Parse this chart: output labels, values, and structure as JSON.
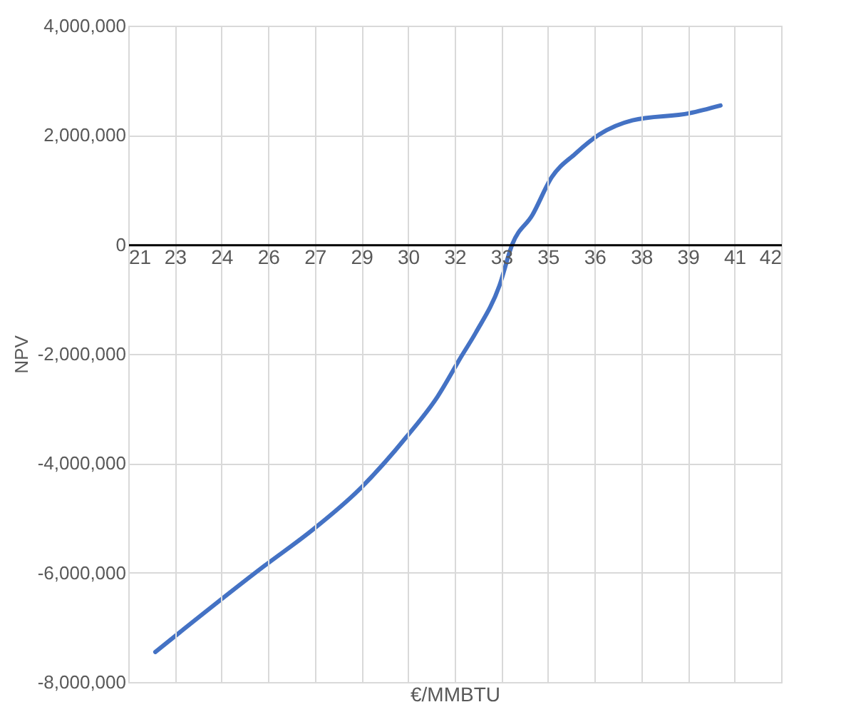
{
  "chart_data": {
    "type": "line",
    "xlabel": "€/MMBTU",
    "ylabel": "NPV",
    "series": [
      {
        "color": "#4472c4",
        "x": [
          21.87,
          25.37,
          26.9,
          28.43,
          29.96,
          30.95,
          31.72,
          32.18,
          32.94,
          33.35,
          34.0,
          34.62,
          35.38,
          36.15,
          37.22,
          39.06,
          40.05
        ],
        "values": [
          -7450000,
          -5880000,
          -5230000,
          -4480000,
          -3510000,
          -2780000,
          -2040000,
          -1610000,
          -750000,
          0,
          540000,
          1230000,
          1660000,
          2010000,
          2270000,
          2400000,
          2540000
        ]
      }
    ],
    "xlim": [
      21,
      42
    ],
    "xticks": [
      21,
      {
        "value": 22.5,
        "label": "23"
      },
      24,
      {
        "value": 25.5,
        "label": "26"
      },
      27,
      {
        "value": 28.5,
        "label": "29"
      },
      30,
      {
        "value": 31.5,
        "label": "32"
      },
      33,
      {
        "value": 34.5,
        "label": "35"
      },
      36,
      {
        "value": 37.5,
        "label": "38"
      },
      39,
      {
        "value": 40.5,
        "label": "41"
      },
      42
    ],
    "ylim": [
      -8000000,
      4000000
    ],
    "yticks": [
      {
        "value": -8000000,
        "label": "-8,000,000"
      },
      {
        "value": -6000000,
        "label": "-6,000,000"
      },
      {
        "value": -4000000,
        "label": "-4,000,000"
      },
      {
        "value": -2000000,
        "label": "-2,000,000"
      },
      0,
      {
        "value": 2000000,
        "label": "2,000,000"
      },
      {
        "value": 4000000,
        "label": "4,000,000"
      }
    ],
    "grid": true,
    "marker": "none",
    "line_style": "solid"
  }
}
